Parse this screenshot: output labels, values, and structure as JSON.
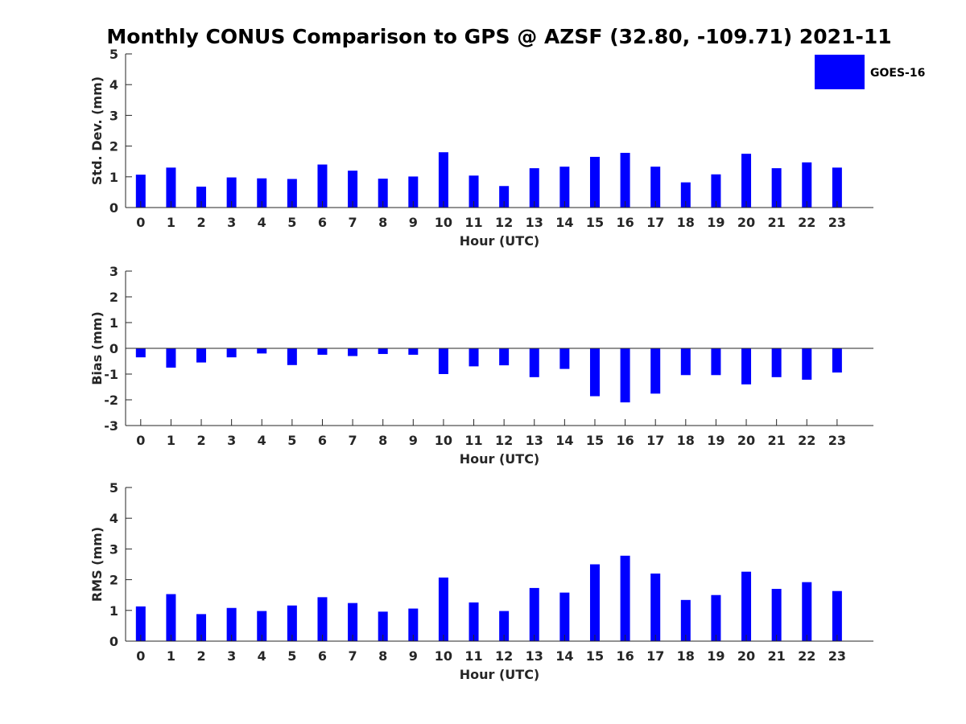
{
  "chart_data": {
    "title": "Monthly CONUS Comparison to GPS @ AZSF (32.80, -109.71) 2021-11",
    "legend": {
      "entries": [
        "GOES-16"
      ],
      "placement": "top-right",
      "color": "#0000ff"
    },
    "bar_color": "#0000ff",
    "axis_color": "#262626",
    "panels": [
      {
        "type": "bar",
        "ylabel": "Std. Dev. (mm)",
        "xlabel": "Hour (UTC)",
        "categories": [
          "0",
          "1",
          "2",
          "3",
          "4",
          "5",
          "6",
          "7",
          "8",
          "9",
          "10",
          "11",
          "12",
          "13",
          "14",
          "15",
          "16",
          "17",
          "18",
          "19",
          "20",
          "21",
          "22",
          "23"
        ],
        "ylim": [
          0,
          5
        ],
        "yticks": [
          0,
          1,
          2,
          3,
          4,
          5
        ],
        "grid": false,
        "series": [
          {
            "name": "GOES-16",
            "values": [
              1.07,
              1.3,
              0.68,
              0.98,
              0.95,
              0.93,
              1.4,
              1.2,
              0.94,
              1.01,
              1.8,
              1.04,
              0.7,
              1.28,
              1.33,
              1.65,
              1.78,
              1.33,
              0.82,
              1.08,
              1.75,
              1.28,
              1.47,
              1.3
            ]
          }
        ]
      },
      {
        "type": "bar",
        "ylabel": "Bias (mm)",
        "xlabel": "Hour (UTC)",
        "categories": [
          "0",
          "1",
          "2",
          "3",
          "4",
          "5",
          "6",
          "7",
          "8",
          "9",
          "10",
          "11",
          "12",
          "13",
          "14",
          "15",
          "16",
          "17",
          "18",
          "19",
          "20",
          "21",
          "22",
          "23"
        ],
        "ylim": [
          -3,
          3
        ],
        "yticks": [
          -3,
          -2,
          -1,
          0,
          1,
          2,
          3
        ],
        "grid": false,
        "series": [
          {
            "name": "GOES-16",
            "values": [
              -0.35,
              -0.75,
              -0.55,
              -0.35,
              -0.2,
              -0.65,
              -0.25,
              -0.3,
              -0.22,
              -0.25,
              -1.0,
              -0.7,
              -0.66,
              -1.12,
              -0.8,
              -1.86,
              -2.1,
              -1.76,
              -1.04,
              -1.04,
              -1.4,
              -1.12,
              -1.22,
              -0.94
            ]
          }
        ]
      },
      {
        "type": "bar",
        "ylabel": "RMS (mm)",
        "xlabel": "Hour (UTC)",
        "categories": [
          "0",
          "1",
          "2",
          "3",
          "4",
          "5",
          "6",
          "7",
          "8",
          "9",
          "10",
          "11",
          "12",
          "13",
          "14",
          "15",
          "16",
          "17",
          "18",
          "19",
          "20",
          "21",
          "22",
          "23"
        ],
        "ylim": [
          0,
          5
        ],
        "yticks": [
          0,
          1,
          2,
          3,
          4,
          5
        ],
        "grid": false,
        "series": [
          {
            "name": "GOES-16",
            "values": [
              1.13,
              1.53,
              0.88,
              1.08,
              0.98,
              1.16,
              1.43,
              1.24,
              0.96,
              1.06,
              2.07,
              1.26,
              0.98,
              1.73,
              1.58,
              2.5,
              2.78,
              2.2,
              1.34,
              1.5,
              2.26,
              1.7,
              1.92,
              1.63
            ]
          }
        ]
      }
    ]
  }
}
